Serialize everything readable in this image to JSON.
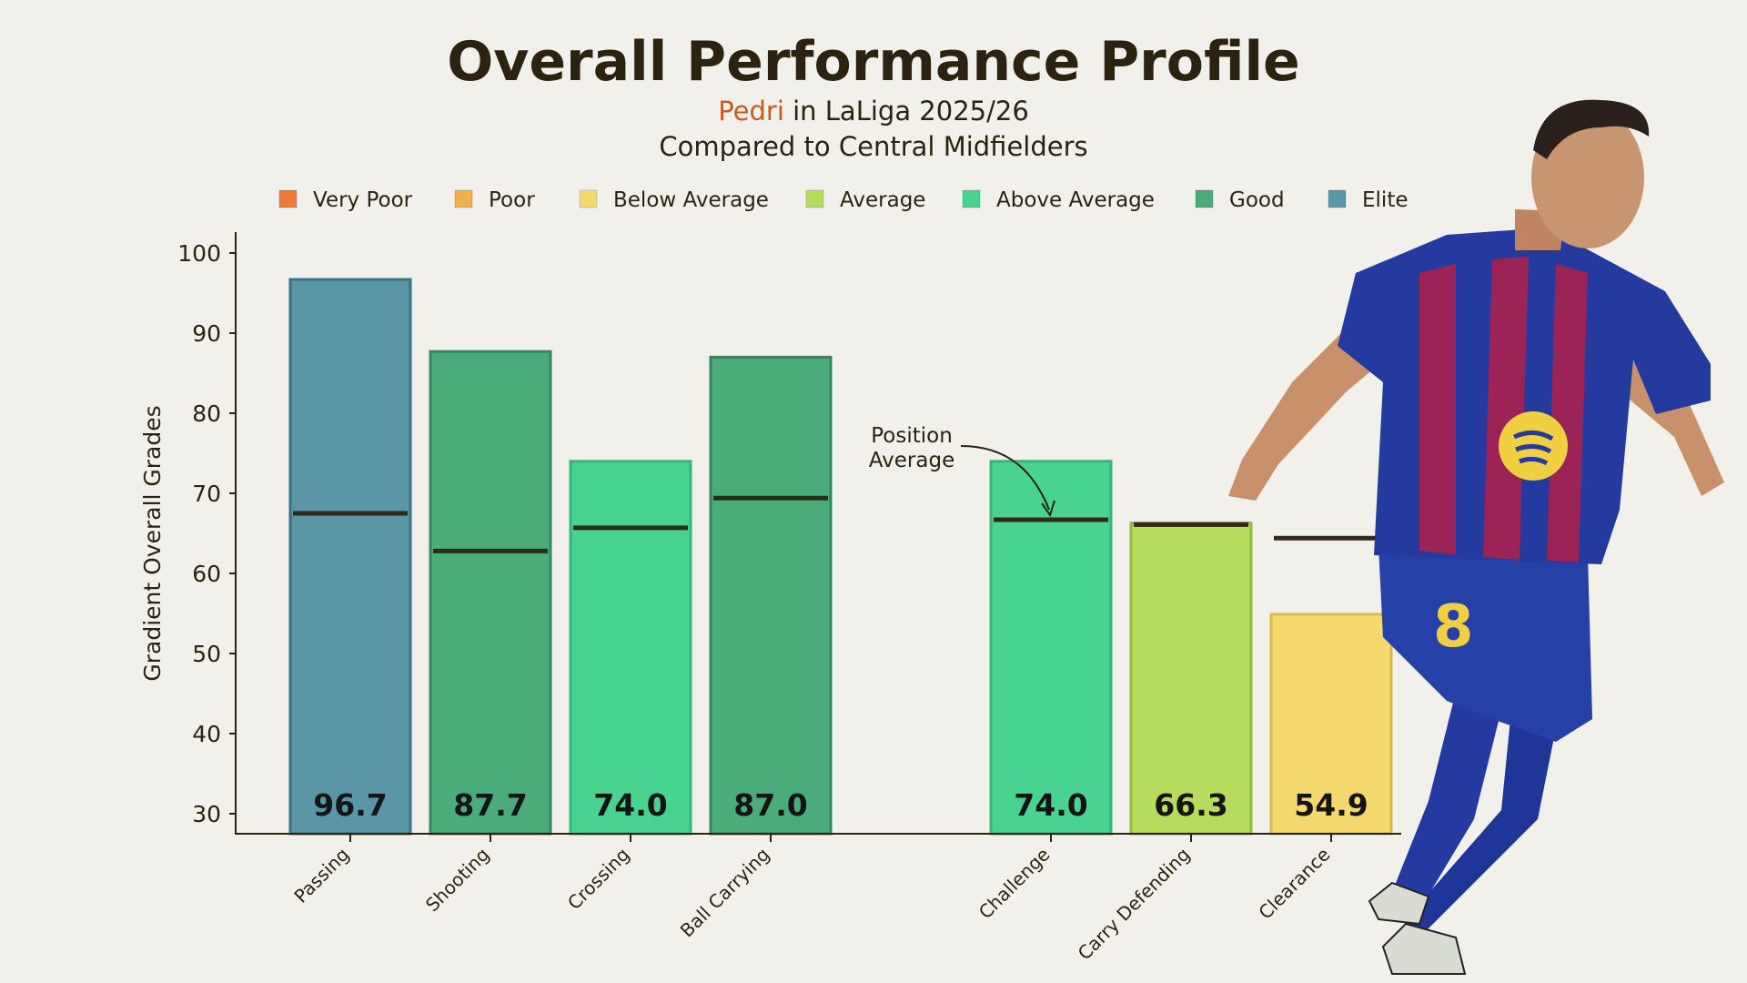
{
  "chart_data": {
    "type": "bar",
    "title": "Overall Performance Profile",
    "subtitle_player": "Pedri",
    "subtitle_rest": " in LaLiga 2025/26",
    "subtitle2": "Compared to Central Midfielders",
    "ylabel": "Gradient Overall Grades",
    "ylim": [
      27.5,
      102.5
    ],
    "yticks": [
      30,
      40,
      50,
      60,
      70,
      80,
      90,
      100
    ],
    "legend": [
      {
        "label": "Very Poor",
        "color": "#f07a3a"
      },
      {
        "label": "Poor",
        "color": "#f0b050"
      },
      {
        "label": "Below Average",
        "color": "#f5d96e"
      },
      {
        "label": "Average",
        "color": "#b5dc5c"
      },
      {
        "label": "Above Average",
        "color": "#48d490"
      },
      {
        "label": "Good",
        "color": "#4aac7a"
      },
      {
        "label": "Elite",
        "color": "#5a97a6"
      }
    ],
    "categories": [
      "Passing",
      "Shooting",
      "Crossing",
      "Ball Carrying",
      "Challenge",
      "Carry Defending",
      "Clearance"
    ],
    "values": [
      96.7,
      87.7,
      74.0,
      87.0,
      74.0,
      66.3,
      54.9
    ],
    "value_labels": [
      "96.7",
      "87.7",
      "74.0",
      "87.0",
      "74.0",
      "66.3",
      "54.9"
    ],
    "position_average": [
      67.5,
      62.8,
      65.7,
      69.4,
      66.7,
      66.1,
      64.4
    ],
    "bar_colors": [
      "#5a97a6",
      "#4aac7a",
      "#48d490",
      "#4aac7a",
      "#48d490",
      "#b5dc5c",
      "#f5d96e"
    ],
    "bar_edge_colors": [
      "#3a7283",
      "#37855d",
      "#35b676",
      "#37855d",
      "#35b676",
      "#93bd3e",
      "#d9bb4c"
    ],
    "annotation": {
      "line1": "Position",
      "line2": "Average"
    }
  }
}
